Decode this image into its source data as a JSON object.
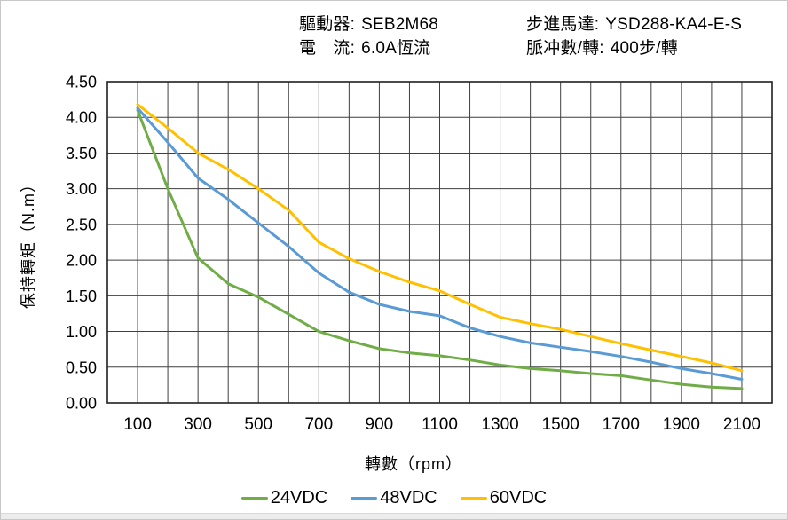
{
  "header": {
    "driver_label": "驅動器:",
    "driver_value": "SEB2M68",
    "current_label": "電　流:",
    "current_value": "6.0A恆流",
    "motor_label": "步進馬達:",
    "motor_value": "YSD288-KA4-E-S",
    "pulses_label": "脈冲數/轉:",
    "pulses_value": "400步/轉"
  },
  "chart_data": {
    "type": "line",
    "title": "",
    "xlabel": "轉數（rpm）",
    "ylabel": "保持轉矩（N.m）",
    "x": [
      100,
      200,
      300,
      400,
      500,
      600,
      700,
      800,
      900,
      1000,
      1100,
      1200,
      1300,
      1400,
      1500,
      1600,
      1700,
      1800,
      1900,
      2000,
      2100
    ],
    "series": [
      {
        "name": "24VDC",
        "color": "#70AD47",
        "values": [
          4.1,
          3.0,
          2.03,
          1.67,
          1.48,
          1.24,
          1.0,
          0.87,
          0.76,
          0.7,
          0.66,
          0.6,
          0.53,
          0.48,
          0.45,
          0.41,
          0.38,
          0.32,
          0.26,
          0.22,
          0.2
        ]
      },
      {
        "name": "48VDC",
        "color": "#5B9BD5",
        "values": [
          4.13,
          3.65,
          3.15,
          2.85,
          2.52,
          2.19,
          1.82,
          1.55,
          1.38,
          1.28,
          1.22,
          1.05,
          0.93,
          0.84,
          0.78,
          0.72,
          0.65,
          0.57,
          0.48,
          0.41,
          0.33
        ]
      },
      {
        "name": "60VDC",
        "color": "#FFC000",
        "values": [
          4.18,
          3.85,
          3.5,
          3.27,
          3.0,
          2.7,
          2.25,
          2.02,
          1.84,
          1.69,
          1.57,
          1.38,
          1.2,
          1.11,
          1.03,
          0.93,
          0.83,
          0.74,
          0.65,
          0.56,
          0.45
        ]
      }
    ],
    "xlim": [
      0,
      2200
    ],
    "ylim": [
      0,
      4.5
    ],
    "x_grid_step": 100,
    "y_grid_step": 0.5,
    "x_ticks": [
      100,
      300,
      500,
      700,
      900,
      1100,
      1300,
      1500,
      1700,
      1900,
      2100
    ],
    "x_tick_labels": [
      "100",
      "300",
      "500",
      "700",
      "900",
      "1100",
      "1300",
      "1500",
      "1700",
      "1900",
      "2100"
    ],
    "y_ticks": [
      0,
      0.5,
      1.0,
      1.5,
      2.0,
      2.5,
      3.0,
      3.5,
      4.0,
      4.5
    ],
    "y_tick_labels": [
      "0.00",
      "0.50",
      "1.00",
      "1.50",
      "2.00",
      "2.50",
      "3.00",
      "3.50",
      "4.00",
      "4.50"
    ],
    "grid": true,
    "legend_position": "bottom"
  },
  "colors": {
    "grid": "#3f3f3f",
    "plot_border": "#1f1f1f",
    "text": "#000000",
    "frame_border": "#c8c8c8",
    "bottom_strip": "#ececec"
  }
}
